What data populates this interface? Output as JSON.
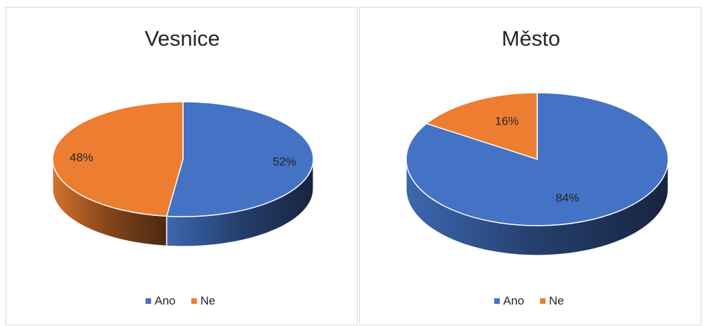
{
  "chart_data": [
    {
      "type": "pie",
      "title": "Vesnice",
      "categories": [
        "Ano",
        "Ne"
      ],
      "values": [
        52,
        48
      ],
      "data_labels": [
        "52%",
        "48%"
      ],
      "colors": [
        "#4472c4",
        "#ed7d31"
      ],
      "legend_position": "bottom",
      "style": "3d"
    },
    {
      "type": "pie",
      "title": "Město",
      "categories": [
        "Ano",
        "Ne"
      ],
      "values": [
        84,
        16
      ],
      "data_labels": [
        "84%",
        "16%"
      ],
      "colors": [
        "#4472c4",
        "#ed7d31"
      ],
      "legend_position": "bottom",
      "style": "3d"
    }
  ]
}
